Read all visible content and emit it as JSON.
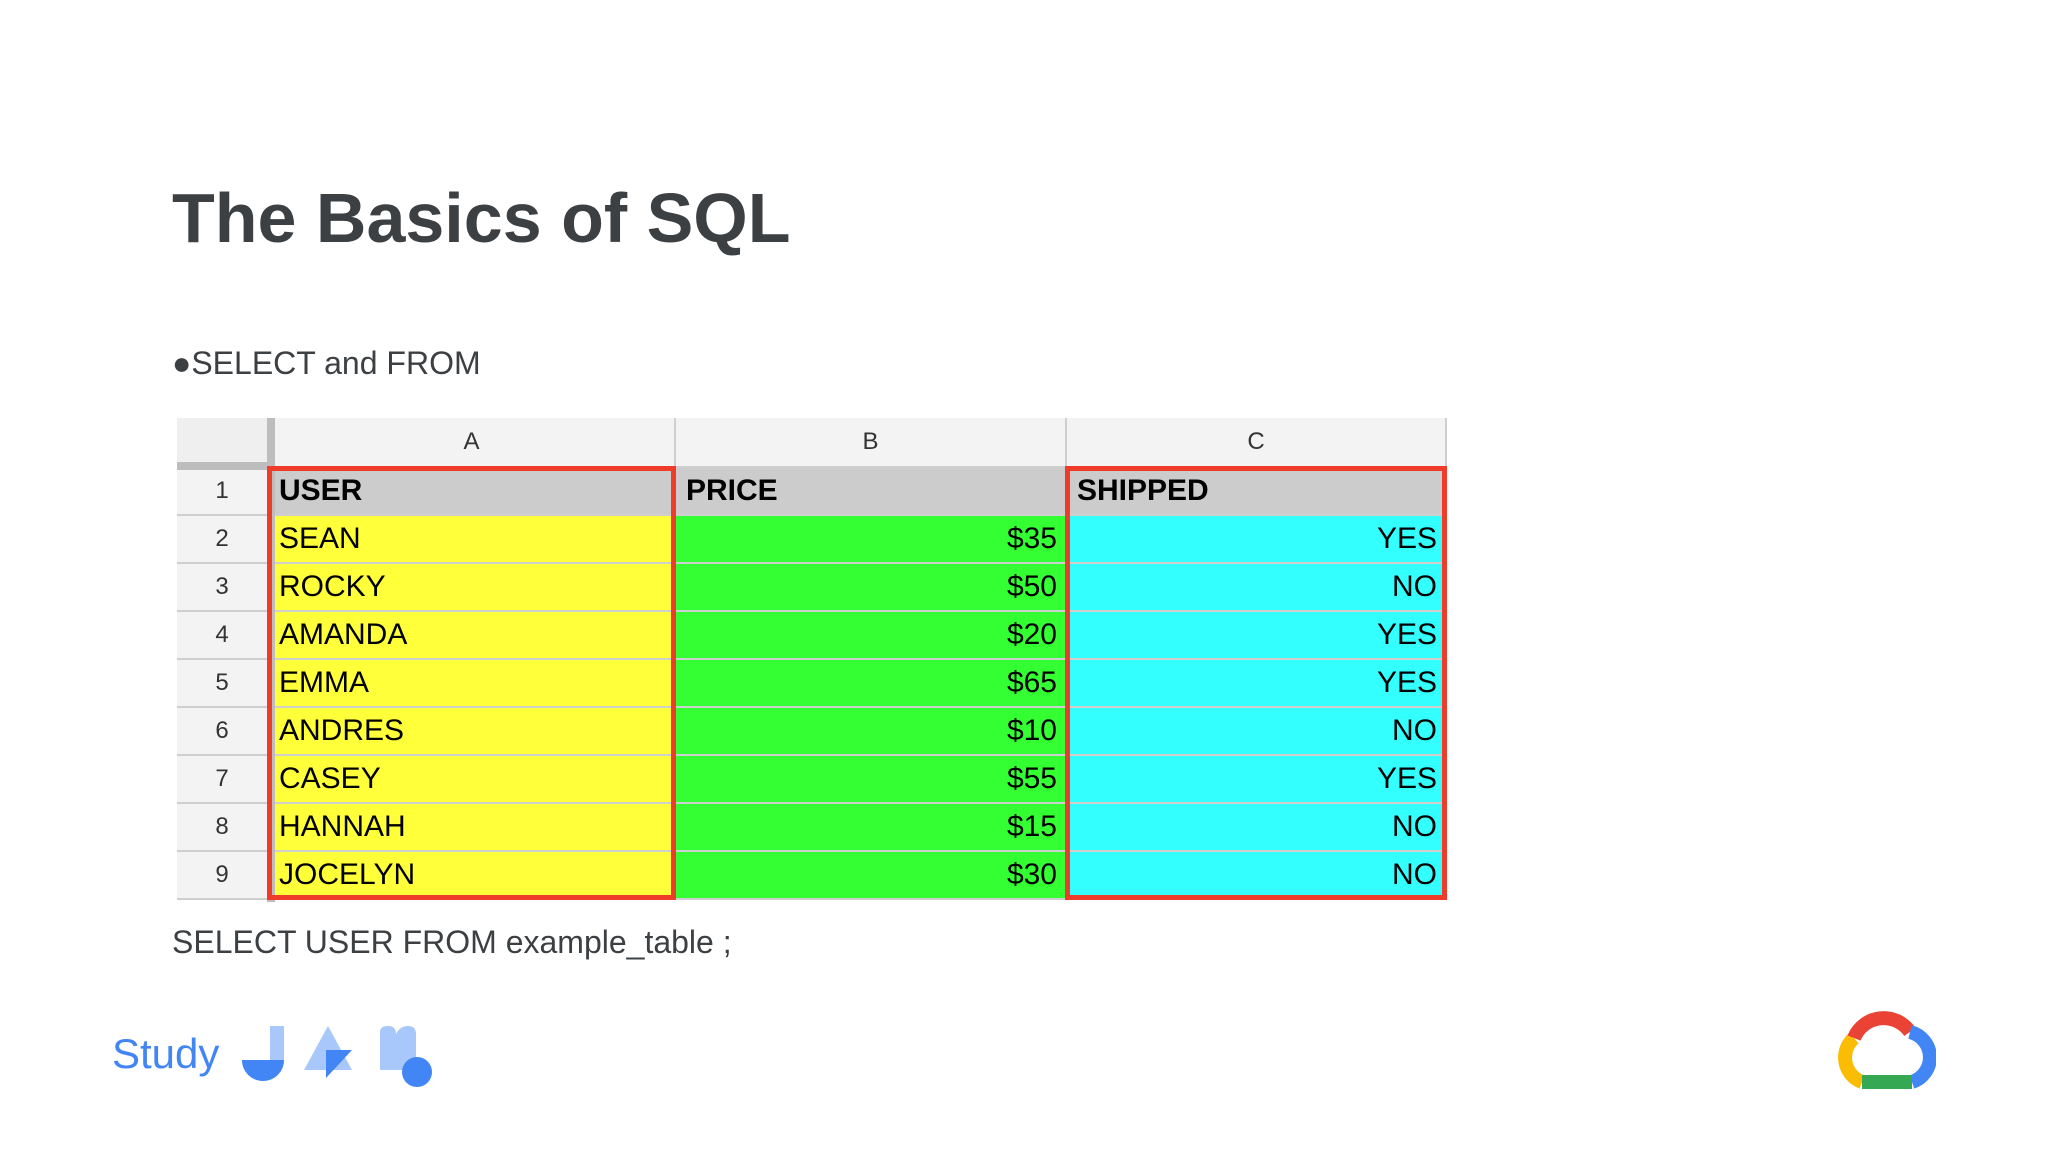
{
  "slide": {
    "title": "The Basics of SQL",
    "bullet": "●SELECT and FROM",
    "query": "SELECT USER FROM example_table ;"
  },
  "sheet": {
    "columns": [
      "A",
      "B",
      "C"
    ],
    "row_numbers": [
      "1",
      "2",
      "3",
      "4",
      "5",
      "6",
      "7",
      "8",
      "9"
    ],
    "headers": [
      "USER",
      "PRICE",
      "SHIPPED"
    ],
    "rows": [
      {
        "user": "SEAN",
        "price": "$35",
        "shipped": "YES"
      },
      {
        "user": "ROCKY",
        "price": "$50",
        "shipped": "NO"
      },
      {
        "user": "AMANDA",
        "price": "$20",
        "shipped": "YES"
      },
      {
        "user": "EMMA",
        "price": "$65",
        "shipped": "YES"
      },
      {
        "user": "ANDRES",
        "price": "$10",
        "shipped": "NO"
      },
      {
        "user": "CASEY",
        "price": "$55",
        "shipped": "YES"
      },
      {
        "user": "HANNAH",
        "price": "$15",
        "shipped": "NO"
      },
      {
        "user": "JOCELYN",
        "price": "$30",
        "shipped": "NO"
      }
    ],
    "colors": {
      "user_fill": "#ffff3a",
      "price_fill": "#33ff33",
      "shipped_fill": "#33ffff",
      "header_fill": "#cccccc",
      "highlight_border": "#ee3b2a"
    },
    "highlighted_columns": [
      "A",
      "C"
    ]
  },
  "footer": {
    "brand_text": "Study",
    "brand_color": "#4285f4",
    "icons": [
      "study-jam-j-icon",
      "study-jam-triangle-icon",
      "study-jam-m-icon",
      "google-cloud-logo-icon"
    ]
  }
}
